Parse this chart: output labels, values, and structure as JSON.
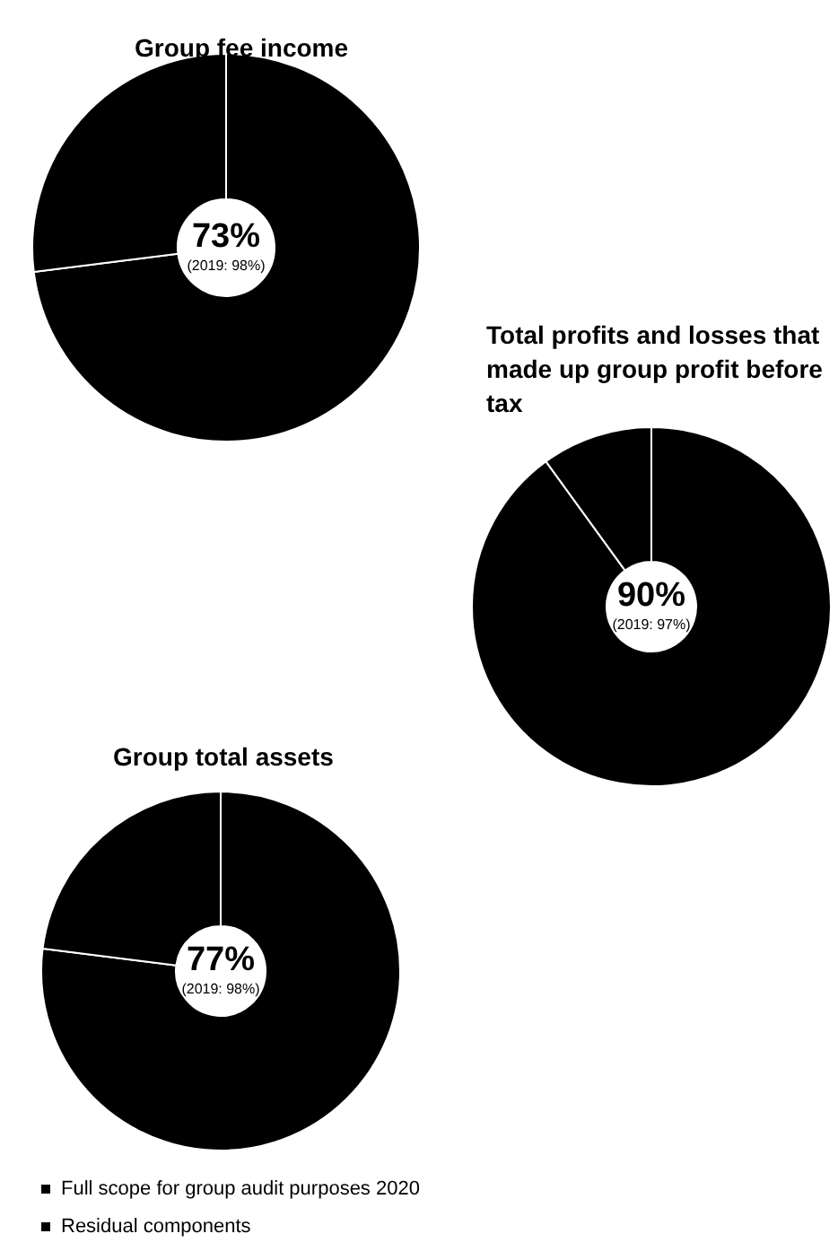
{
  "chart_data": [
    {
      "type": "donut",
      "title": "Group fee income",
      "categories": [
        null,
        null
      ],
      "values": [
        73,
        27
      ],
      "colors": [
        "#000000",
        "#000000"
      ],
      "value_labels": [
        "73%",
        null
      ],
      "annotations": [
        "(2019: 98%)"
      ],
      "legend": false
    },
    {
      "type": "donut",
      "title": "Total profits and losses that made up group profit before tax",
      "categories": [
        null,
        null
      ],
      "values": [
        90,
        10
      ],
      "colors": [
        "#000000",
        "#000000"
      ],
      "value_labels": [
        "90%",
        null
      ],
      "annotations": [
        "(2019: 97%)"
      ],
      "legend": false
    },
    {
      "type": "donut",
      "title": "Group total assets",
      "categories": [
        "Full scope for group audit purposes 2020",
        "Residual components"
      ],
      "values": [
        77,
        23
      ],
      "colors": [
        "#000000",
        "#000000"
      ],
      "value_labels": [
        "77%",
        null
      ],
      "annotations": [
        "(2019: 98%)"
      ],
      "legend": "bottom left"
    }
  ]
}
